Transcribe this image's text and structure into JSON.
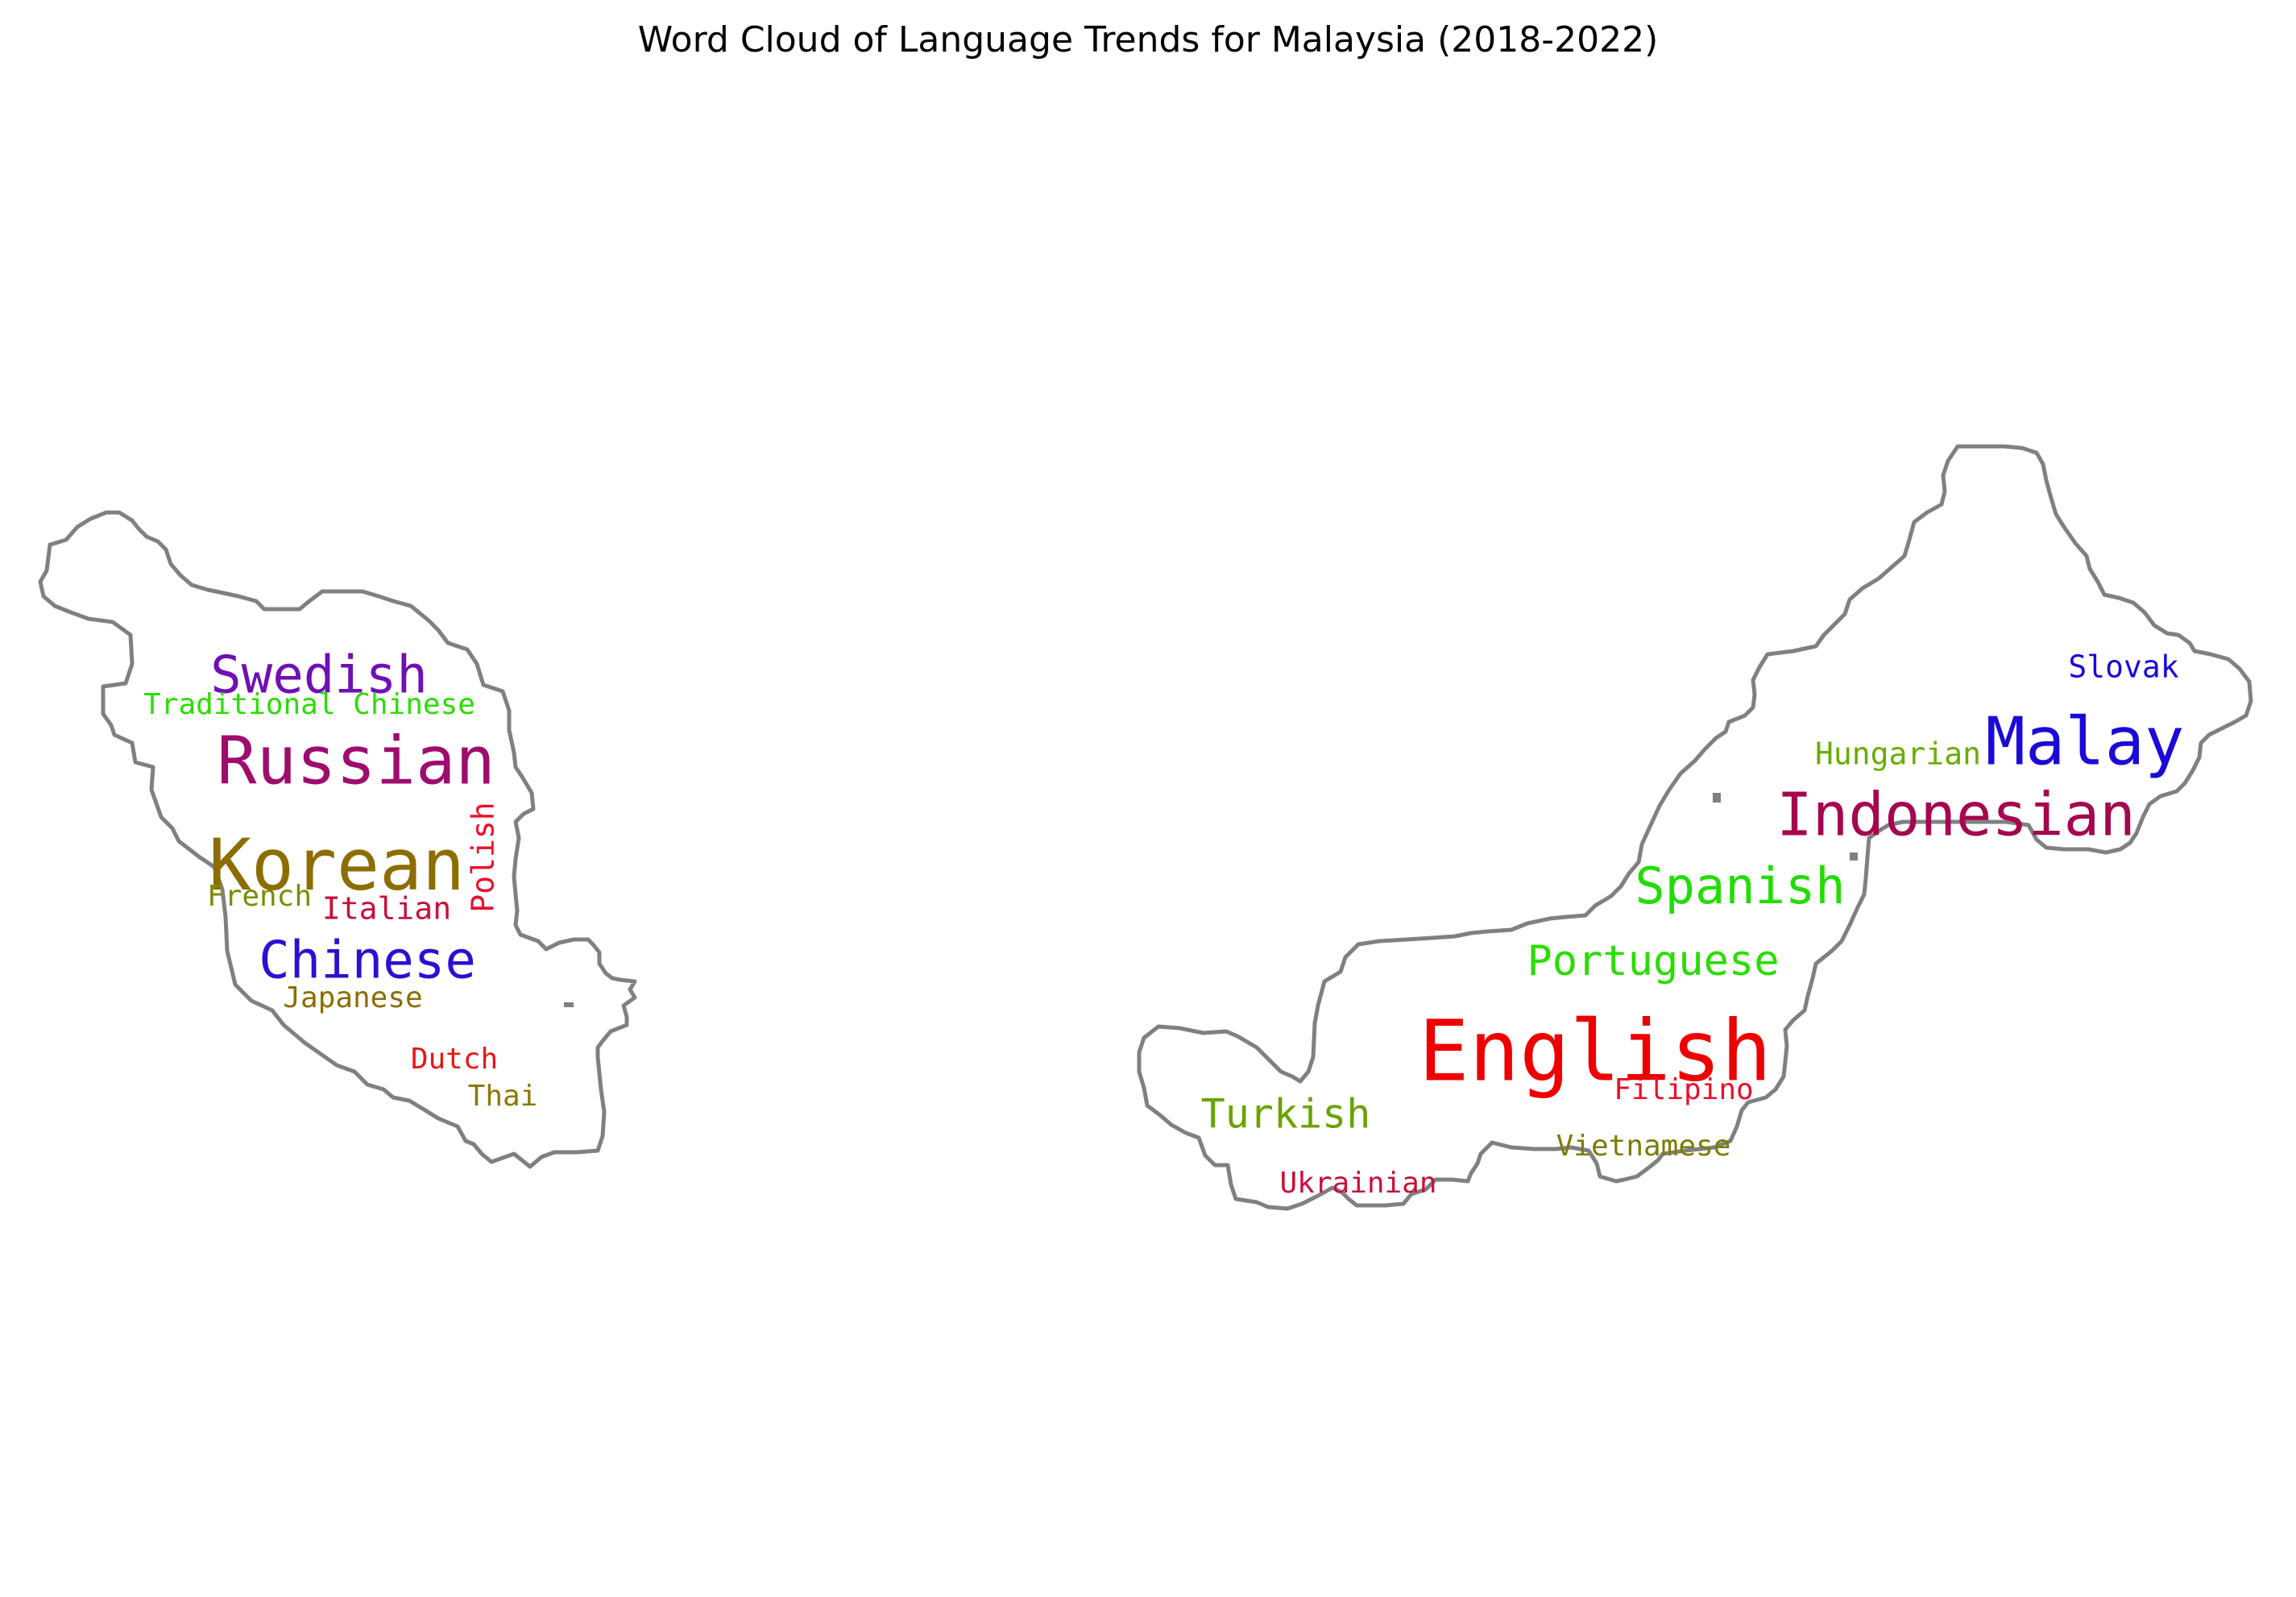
{
  "chart_data": {
    "type": "wordcloud",
    "title": "Word Cloud of Language Trends for Malaysia (2018-2022)",
    "words": [
      {
        "text": "English",
        "color": "#ee0000"
      },
      {
        "text": "Malay",
        "color": "#1a0ad8"
      },
      {
        "text": "Indonesian",
        "color": "#a5064f"
      },
      {
        "text": "Korean",
        "color": "#8c6d00"
      },
      {
        "text": "Russian",
        "color": "#9e0c6e"
      },
      {
        "text": "Spanish",
        "color": "#22dd00"
      },
      {
        "text": "Swedish",
        "color": "#6f0fb5"
      },
      {
        "text": "Chinese",
        "color": "#2c10d2"
      },
      {
        "text": "Portuguese",
        "color": "#2add00"
      },
      {
        "text": "Turkish",
        "color": "#6aa300"
      },
      {
        "text": "Hungarian",
        "color": "#6aac00"
      },
      {
        "text": "Slovak",
        "color": "#1a0ad8"
      },
      {
        "text": "Traditional Chinese",
        "color": "#2add00"
      },
      {
        "text": "Italian",
        "color": "#c8103a"
      },
      {
        "text": "French",
        "color": "#7a8c00"
      },
      {
        "text": "Japanese",
        "color": "#8c6d00"
      },
      {
        "text": "Polish",
        "color": "#ee0d2a"
      },
      {
        "text": "Dutch",
        "color": "#ee1414"
      },
      {
        "text": "Thai",
        "color": "#8c7800"
      },
      {
        "text": "Filipino",
        "color": "#ee0d2a"
      },
      {
        "text": "Vietnamese",
        "color": "#7e7c00"
      },
      {
        "text": "Ukrainian",
        "color": "#c8103a"
      }
    ],
    "colors": {
      "outline": "#808080"
    }
  }
}
